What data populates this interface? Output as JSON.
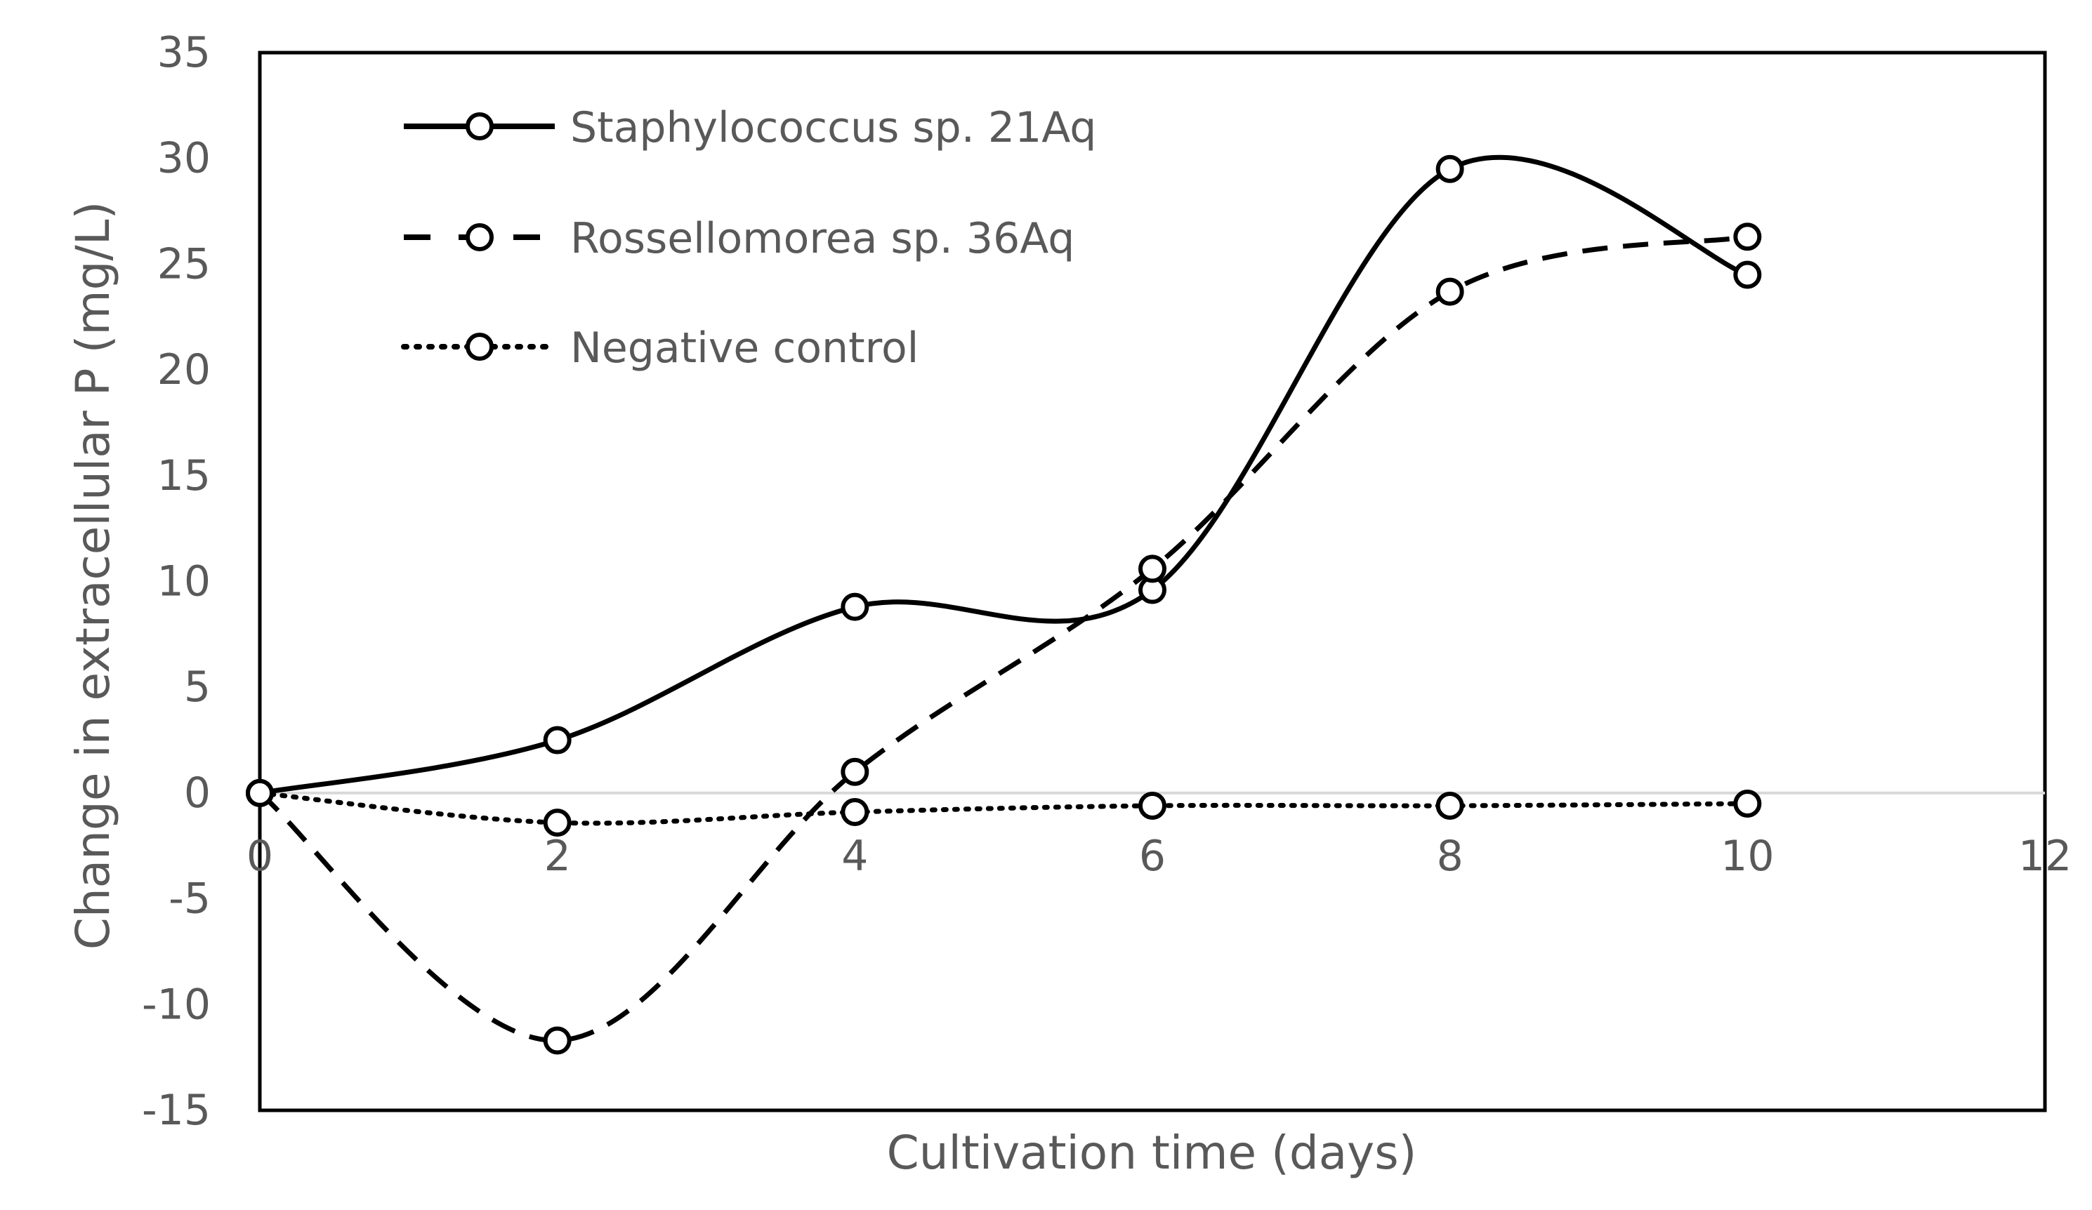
{
  "chart_data": {
    "type": "line",
    "title": "",
    "xlabel": "Cultivation time (days)",
    "ylabel": "Change in extracellular P (mg/L)",
    "xlim": [
      0,
      12
    ],
    "ylim": [
      -15,
      35
    ],
    "xticks": [
      0,
      2,
      4,
      6,
      8,
      10,
      12
    ],
    "yticks": [
      35,
      30,
      25,
      20,
      15,
      10,
      5,
      0,
      -5,
      -10,
      -15
    ],
    "grid": false,
    "legend_position": "top-left",
    "x": [
      0,
      2,
      4,
      6,
      8,
      10
    ],
    "series": [
      {
        "name": "Staphylococcus sp. 21Aq",
        "style": "solid",
        "color": "#000000",
        "values": [
          0,
          2.5,
          8.8,
          9.6,
          29.5,
          24.5
        ]
      },
      {
        "name": "Rossellomorea sp. 36Aq",
        "style": "dashed",
        "color": "#000000",
        "values": [
          0,
          -11.7,
          1.0,
          10.6,
          23.7,
          26.3
        ]
      },
      {
        "name": "Negative control",
        "style": "dotted",
        "color": "#000000",
        "values": [
          0,
          -1.4,
          -0.9,
          -0.6,
          -0.6,
          -0.5
        ]
      }
    ]
  }
}
